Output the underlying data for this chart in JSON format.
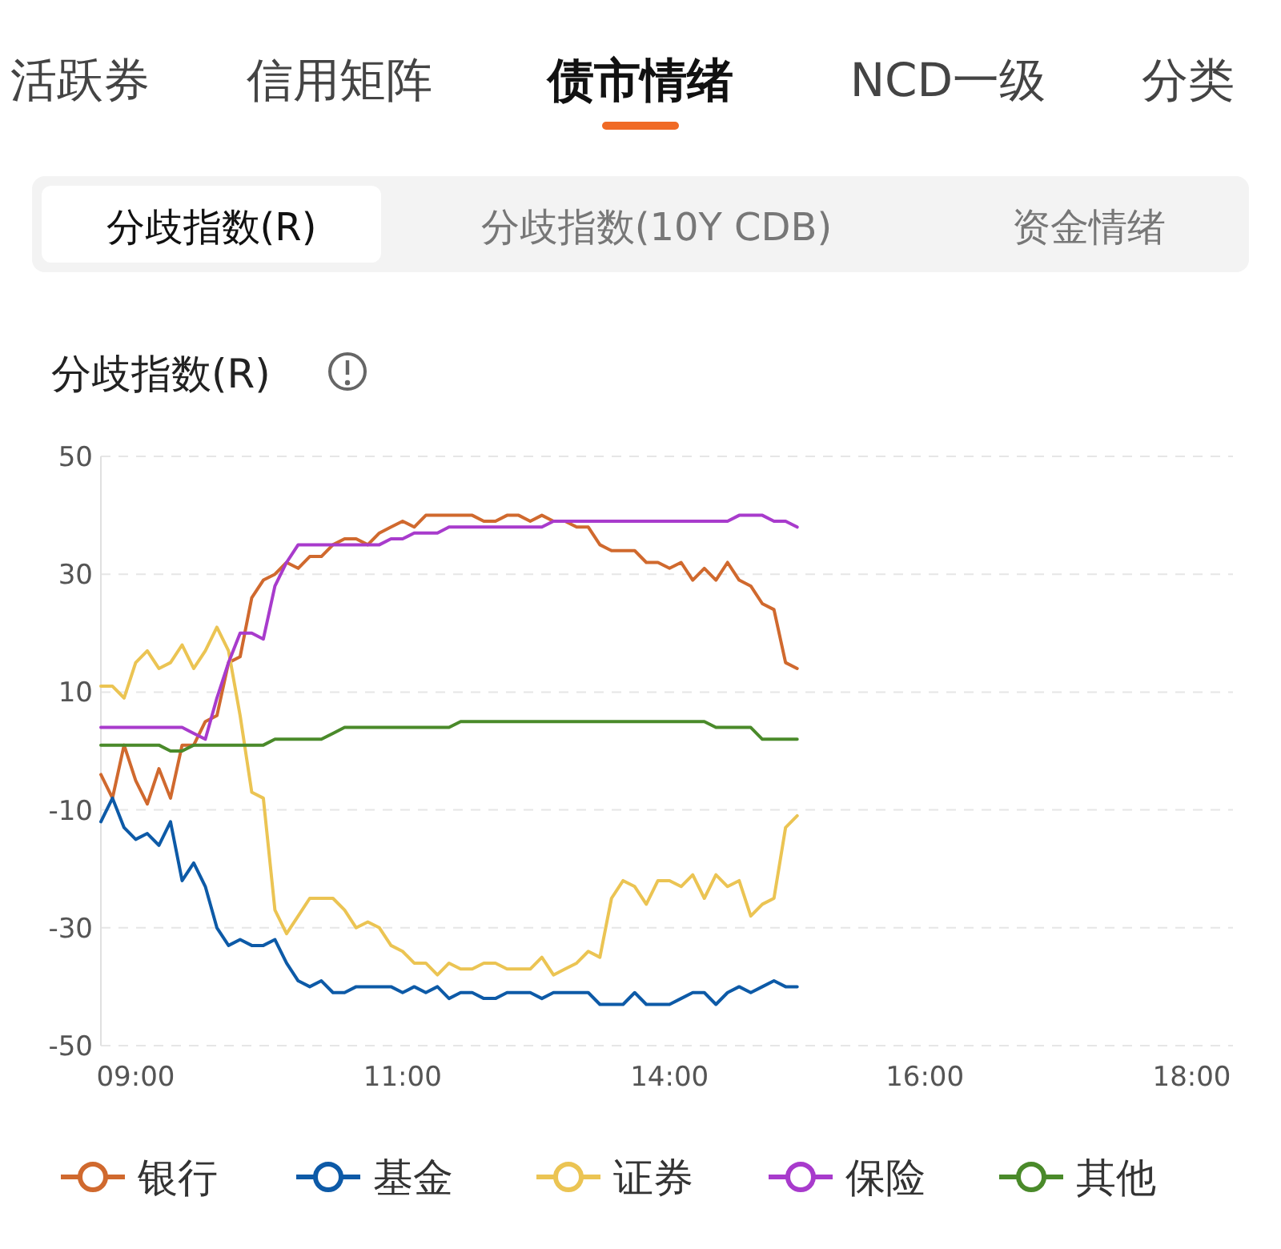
{
  "chart_data": {
    "type": "line",
    "title": "分歧指数(R)",
    "annotations": [
      "活跃券",
      "信用矩阵",
      "债市情绪",
      "NCD一级",
      "分类",
      "分歧指数(R)",
      "分歧指数(10Y CDB)",
      "资金情绪"
    ],
    "categories": [
      null,
      null,
      null,
      "09:00",
      null,
      null,
      null,
      null,
      null,
      null,
      null,
      null,
      null,
      null,
      null,
      null,
      null,
      null,
      null,
      null,
      null,
      null,
      null,
      null,
      null,
      null,
      "11:00",
      null,
      null,
      null,
      null,
      null,
      null,
      null,
      null,
      null,
      null,
      null,
      null,
      null,
      null,
      null,
      null,
      null,
      null,
      null,
      null,
      null,
      null,
      "14:00",
      null,
      null,
      null,
      null,
      null,
      null,
      null,
      null,
      null,
      null,
      null,
      null,
      null,
      null,
      null,
      null,
      null,
      null,
      null,
      null,
      null,
      "16:00",
      null,
      null,
      null,
      null,
      null,
      null,
      null,
      null,
      null,
      null,
      null,
      null,
      null,
      null,
      null,
      null,
      null,
      null,
      null,
      null,
      null,
      null,
      "18:00",
      null,
      null,
      null
    ],
    "series": [
      {
        "name": "银行",
        "color": "#d0692e",
        "values": [
          -4,
          -8,
          1,
          -5,
          -9,
          -3,
          -8,
          1,
          1,
          5,
          6,
          15,
          16,
          26,
          29,
          30,
          32,
          31,
          33,
          33,
          35,
          36,
          36,
          35,
          37,
          38,
          39,
          38,
          40,
          40,
          40,
          40,
          40,
          39,
          39,
          40,
          40,
          39,
          40,
          39,
          39,
          38,
          38,
          35,
          34,
          34,
          34,
          32,
          32,
          31,
          32,
          29,
          31,
          29,
          32,
          29,
          28,
          25,
          24,
          15,
          14,
          null,
          null,
          null,
          null,
          null,
          null,
          null,
          null,
          null,
          null,
          null,
          null,
          null,
          null,
          null,
          null,
          null,
          null,
          null,
          null,
          null,
          null,
          null,
          null,
          null,
          null,
          null,
          null,
          null,
          null,
          null,
          null,
          null,
          null,
          null,
          null,
          null
        ]
      },
      {
        "name": "基金",
        "color": "#0d5aa7",
        "values": [
          -12,
          -8,
          -13,
          -15,
          -14,
          -16,
          -12,
          -22,
          -19,
          -23,
          -30,
          -33,
          -32,
          -33,
          -33,
          -32,
          -36,
          -39,
          -40,
          -39,
          -41,
          -41,
          -40,
          -40,
          -40,
          -40,
          -41,
          -40,
          -41,
          -40,
          -42,
          -41,
          -41,
          -42,
          -42,
          -41,
          -41,
          -41,
          -42,
          -41,
          -41,
          -41,
          -41,
          -43,
          -43,
          -43,
          -41,
          -43,
          -43,
          -43,
          -42,
          -41,
          -41,
          -43,
          -41,
          -40,
          -41,
          -40,
          -39,
          -40,
          -40,
          null,
          null,
          null,
          null,
          null,
          null,
          null,
          null,
          null,
          null,
          null,
          null,
          null,
          null,
          null,
          null,
          null,
          null,
          null,
          null,
          null,
          null,
          null,
          null,
          null,
          null,
          null,
          null,
          null,
          null,
          null,
          null,
          null,
          null,
          null,
          null,
          null
        ]
      },
      {
        "name": "证券",
        "color": "#ebc453",
        "values": [
          11,
          11,
          9,
          15,
          17,
          14,
          15,
          18,
          14,
          17,
          21,
          17,
          6,
          -7,
          -8,
          -27,
          -31,
          -28,
          -25,
          -25,
          -25,
          -27,
          -30,
          -29,
          -30,
          -33,
          -34,
          -36,
          -36,
          -38,
          -36,
          -37,
          -37,
          -36,
          -36,
          -37,
          -37,
          -37,
          -35,
          -38,
          -37,
          -36,
          -34,
          -35,
          -25,
          -22,
          -23,
          -26,
          -22,
          -22,
          -23,
          -21,
          -25,
          -21,
          -23,
          -22,
          -28,
          -26,
          -25,
          -13,
          -11,
          null,
          null,
          null,
          null,
          null,
          null,
          null,
          null,
          null,
          null,
          null,
          null,
          null,
          null,
          null,
          null,
          null,
          null,
          null,
          null,
          null,
          null,
          null,
          null,
          null,
          null,
          null,
          null,
          null,
          null,
          null,
          null,
          null,
          null,
          null,
          null,
          null
        ]
      },
      {
        "name": "保险",
        "color": "#a83bcc",
        "values": [
          4,
          4,
          4,
          4,
          4,
          4,
          4,
          4,
          3,
          2,
          9,
          15,
          20,
          20,
          19,
          28,
          32,
          35,
          35,
          35,
          35,
          35,
          35,
          35,
          35,
          36,
          36,
          37,
          37,
          37,
          38,
          38,
          38,
          38,
          38,
          38,
          38,
          38,
          38,
          39,
          39,
          39,
          39,
          39,
          39,
          39,
          39,
          39,
          39,
          39,
          39,
          39,
          39,
          39,
          39,
          40,
          40,
          40,
          39,
          39,
          38,
          null,
          null,
          null,
          null,
          null,
          null,
          null,
          null,
          null,
          null,
          null,
          null,
          null,
          null,
          null,
          null,
          null,
          null,
          null,
          null,
          null,
          null,
          null,
          null,
          null,
          null,
          null,
          null,
          null,
          null,
          null,
          null,
          null,
          null,
          null,
          null,
          null
        ]
      },
      {
        "name": "其他",
        "color": "#4a8a2a",
        "values": [
          1,
          1,
          1,
          1,
          1,
          1,
          0,
          0,
          1,
          1,
          1,
          1,
          1,
          1,
          1,
          2,
          2,
          2,
          2,
          2,
          3,
          4,
          4,
          4,
          4,
          4,
          4,
          4,
          4,
          4,
          4,
          5,
          5,
          5,
          5,
          5,
          5,
          5,
          5,
          5,
          5,
          5,
          5,
          5,
          5,
          5,
          5,
          5,
          5,
          5,
          5,
          5,
          5,
          4,
          4,
          4,
          4,
          2,
          2,
          2,
          2,
          null,
          null,
          null,
          null,
          null,
          null,
          null,
          null,
          null,
          null,
          null,
          null,
          null,
          null,
          null,
          null,
          null,
          null,
          null,
          null,
          null,
          null,
          null,
          null,
          null,
          null,
          null,
          null,
          null,
          null,
          null,
          null,
          null,
          null,
          null,
          null,
          null
        ]
      }
    ],
    "ylim": [
      -50,
      50
    ],
    "yticks": [
      -50,
      -30,
      -10,
      10,
      30,
      50
    ],
    "grid": "y",
    "legend": "bottom",
    "marker": "none",
    "line_style": "solid"
  }
}
